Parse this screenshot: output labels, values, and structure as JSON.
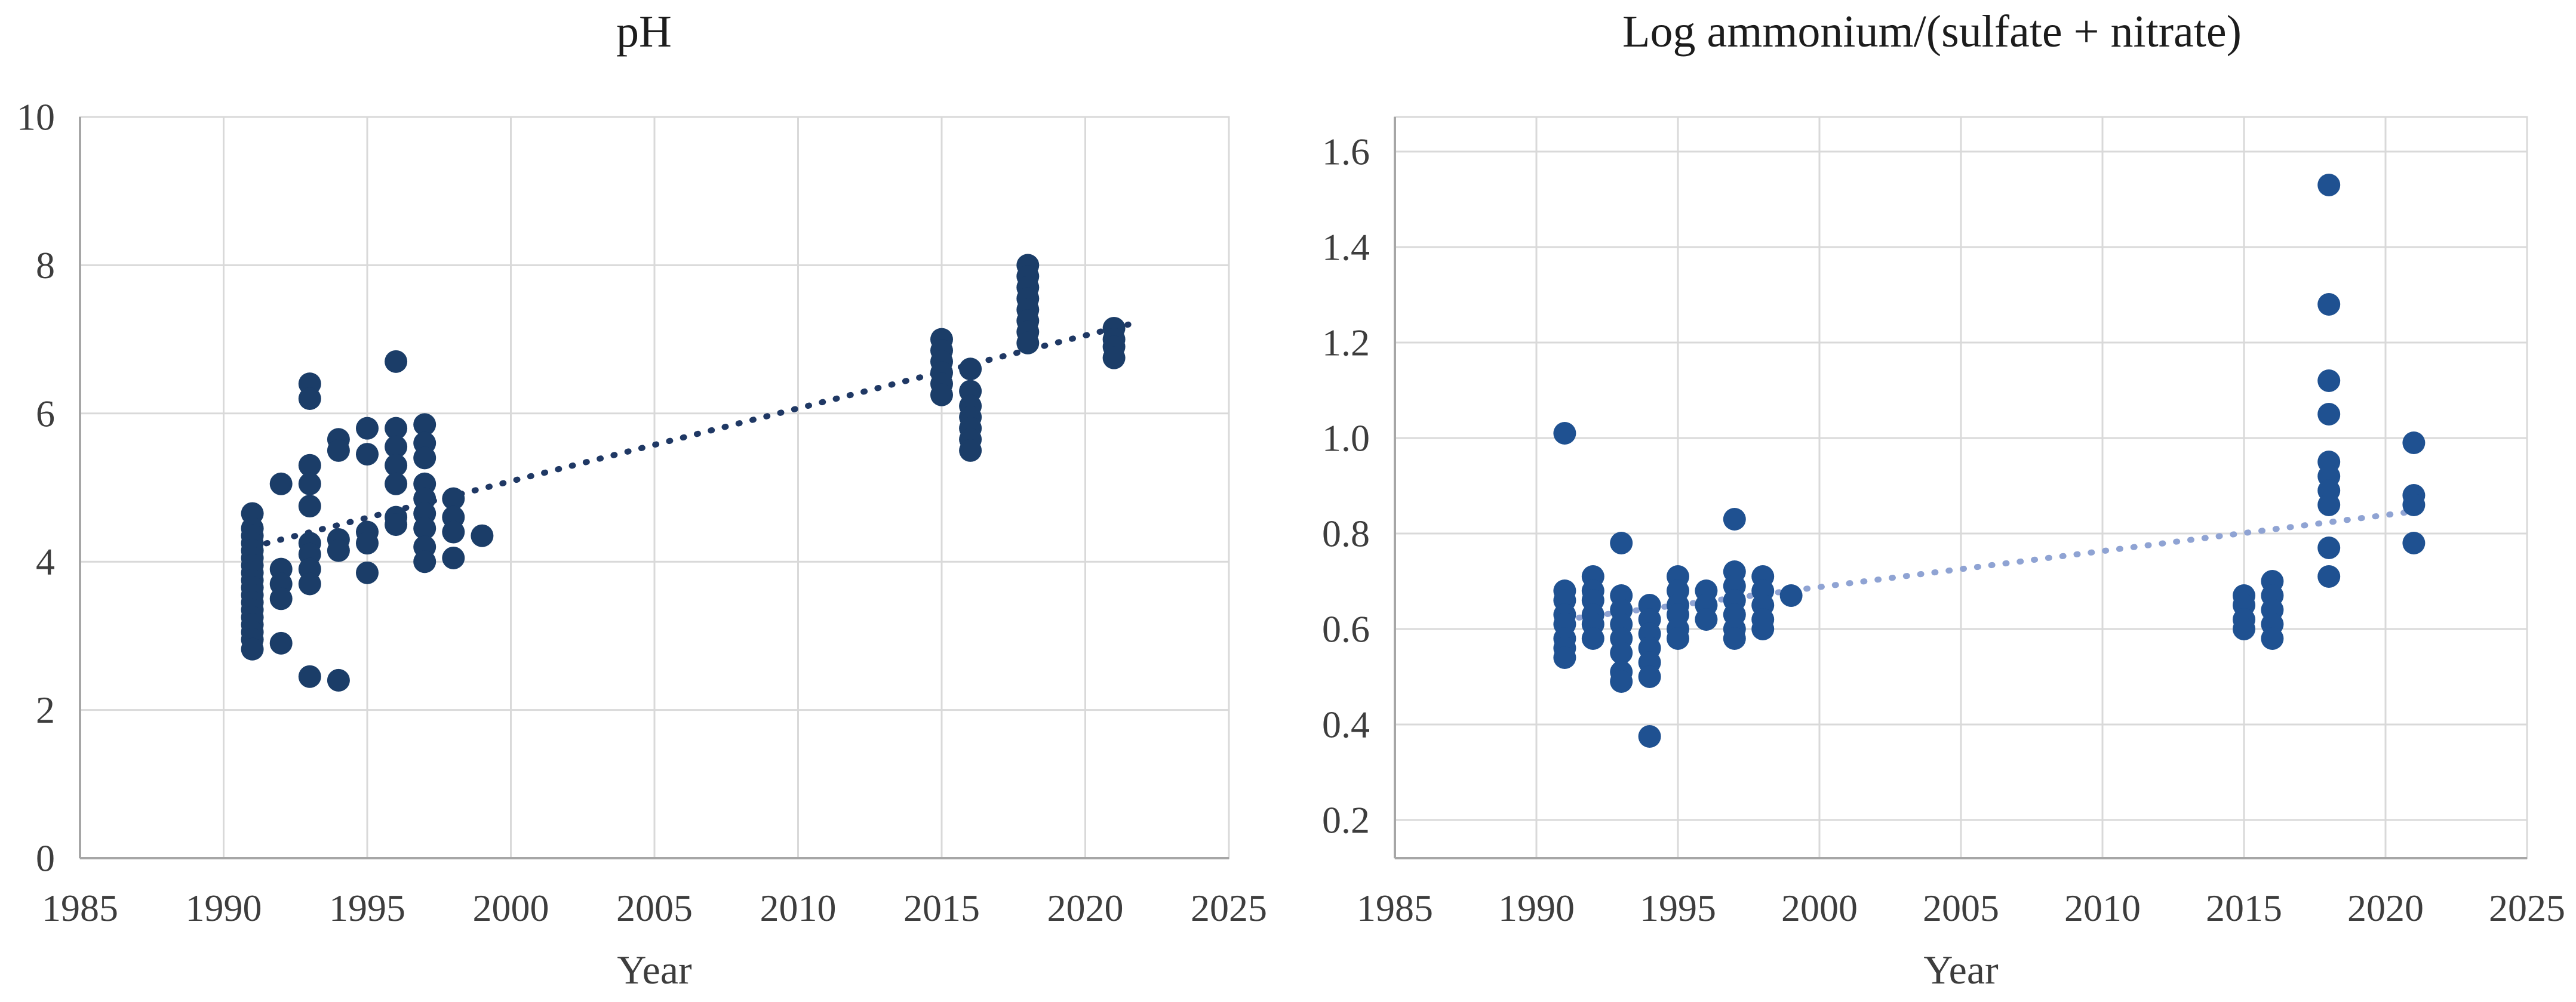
{
  "page": {
    "background": "#ffffff",
    "grid_color": "#d9d9d9",
    "axis_color": "#a6a6a6",
    "label_color": "#3d3d3d"
  },
  "chart_data": [
    {
      "type": "scatter",
      "title": "pH",
      "xlabel": "Year",
      "xlim": [
        1985,
        2025
      ],
      "ylim": [
        0,
        10
      ],
      "x_tick_values": [
        1985,
        1990,
        1995,
        2000,
        2005,
        2010,
        2015,
        2020,
        2025
      ],
      "x_tick_labels": [
        "1985",
        "1990",
        "1995",
        "2000",
        "2005",
        "2010",
        "2015",
        "2020",
        "2025"
      ],
      "y_tick_values": [
        0,
        2,
        4,
        6,
        8,
        10
      ],
      "y_tick_labels": [
        "0",
        "2",
        "4",
        "6",
        "8",
        "10"
      ],
      "grid": true,
      "legend": "none",
      "marker_color": "#1b3d68",
      "trendline": {
        "style": "dotted",
        "color": "#1f3864",
        "x": [
          1991,
          2021.5
        ],
        "y": [
          4.2,
          7.2
        ]
      },
      "points": [
        [
          1991,
          4.65
        ],
        [
          1991,
          4.45
        ],
        [
          1991,
          4.35
        ],
        [
          1991,
          4.25
        ],
        [
          1991,
          4.15
        ],
        [
          1991,
          4.05
        ],
        [
          1991,
          3.95
        ],
        [
          1991,
          3.85
        ],
        [
          1991,
          3.75
        ],
        [
          1991,
          3.65
        ],
        [
          1991,
          3.55
        ],
        [
          1991,
          3.45
        ],
        [
          1991,
          3.35
        ],
        [
          1991,
          3.25
        ],
        [
          1991,
          3.15
        ],
        [
          1991,
          3.05
        ],
        [
          1991,
          2.95
        ],
        [
          1991,
          2.82
        ],
        [
          1992,
          5.05
        ],
        [
          1992,
          3.9
        ],
        [
          1992,
          3.7
        ],
        [
          1992,
          3.5
        ],
        [
          1992,
          2.9
        ],
        [
          1993,
          6.4
        ],
        [
          1993,
          6.2
        ],
        [
          1993,
          5.3
        ],
        [
          1993,
          5.05
        ],
        [
          1993,
          4.75
        ],
        [
          1993,
          4.25
        ],
        [
          1993,
          4.1
        ],
        [
          1993,
          3.9
        ],
        [
          1993,
          3.7
        ],
        [
          1993,
          2.45
        ],
        [
          1994,
          5.65
        ],
        [
          1994,
          5.5
        ],
        [
          1994,
          4.3
        ],
        [
          1994,
          4.15
        ],
        [
          1994,
          2.4
        ],
        [
          1995,
          5.8
        ],
        [
          1995,
          5.45
        ],
        [
          1995,
          4.4
        ],
        [
          1995,
          4.25
        ],
        [
          1995,
          3.85
        ],
        [
          1996,
          6.7
        ],
        [
          1996,
          5.8
        ],
        [
          1996,
          5.55
        ],
        [
          1996,
          5.3
        ],
        [
          1996,
          5.05
        ],
        [
          1996,
          4.6
        ],
        [
          1996,
          4.5
        ],
        [
          1997,
          5.85
        ],
        [
          1997,
          5.6
        ],
        [
          1997,
          5.4
        ],
        [
          1997,
          5.05
        ],
        [
          1997,
          4.85
        ],
        [
          1997,
          4.65
        ],
        [
          1997,
          4.45
        ],
        [
          1997,
          4.2
        ],
        [
          1997,
          4.0
        ],
        [
          1998,
          4.85
        ],
        [
          1998,
          4.6
        ],
        [
          1998,
          4.4
        ],
        [
          1998,
          4.05
        ],
        [
          1999,
          4.35
        ],
        [
          2015,
          7.0
        ],
        [
          2015,
          6.85
        ],
        [
          2015,
          6.7
        ],
        [
          2015,
          6.55
        ],
        [
          2015,
          6.4
        ],
        [
          2015,
          6.25
        ],
        [
          2016,
          6.6
        ],
        [
          2016,
          6.3
        ],
        [
          2016,
          6.1
        ],
        [
          2016,
          5.95
        ],
        [
          2016,
          5.8
        ],
        [
          2016,
          5.65
        ],
        [
          2016,
          5.5
        ],
        [
          2018,
          8.0
        ],
        [
          2018,
          7.85
        ],
        [
          2018,
          7.7
        ],
        [
          2018,
          7.55
        ],
        [
          2018,
          7.4
        ],
        [
          2018,
          7.25
        ],
        [
          2018,
          7.1
        ],
        [
          2018,
          6.95
        ],
        [
          2021,
          7.15
        ],
        [
          2021,
          7.0
        ],
        [
          2021,
          6.9
        ],
        [
          2021,
          6.75
        ]
      ]
    },
    {
      "type": "scatter",
      "title": "Log ammonium/(sulfate + nitrate)",
      "xlabel": "Year",
      "xlim": [
        1985,
        2025
      ],
      "ylim": [
        0.12,
        1.6725
      ],
      "x_tick_values": [
        1985,
        1990,
        1995,
        2000,
        2005,
        2010,
        2015,
        2020,
        2025
      ],
      "x_tick_labels": [
        "1985",
        "1990",
        "1995",
        "2000",
        "2005",
        "2010",
        "2015",
        "2020",
        "2025"
      ],
      "y_tick_values": [
        0.2,
        0.4,
        0.6,
        0.8,
        1.0,
        1.2,
        1.4,
        1.6
      ],
      "y_tick_labels": [
        "0.2",
        "0.4",
        "0.6",
        "0.8",
        "1.0",
        "1.2",
        "1.4",
        "1.6"
      ],
      "grid": true,
      "legend": "none",
      "marker_color": "#1f5191",
      "trendline": {
        "style": "dotted",
        "color": "#8fa3d3",
        "x": [
          1991,
          2021.5
        ],
        "y": [
          0.62,
          0.85
        ]
      },
      "points": [
        [
          1991,
          1.01
        ],
        [
          1991,
          0.68
        ],
        [
          1991,
          0.66
        ],
        [
          1991,
          0.63
        ],
        [
          1991,
          0.61
        ],
        [
          1991,
          0.58
        ],
        [
          1991,
          0.56
        ],
        [
          1991,
          0.54
        ],
        [
          1992,
          0.71
        ],
        [
          1992,
          0.68
        ],
        [
          1992,
          0.66
        ],
        [
          1992,
          0.63
        ],
        [
          1992,
          0.61
        ],
        [
          1992,
          0.58
        ],
        [
          1993,
          0.78
        ],
        [
          1993,
          0.67
        ],
        [
          1993,
          0.64
        ],
        [
          1993,
          0.61
        ],
        [
          1993,
          0.58
        ],
        [
          1993,
          0.55
        ],
        [
          1993,
          0.51
        ],
        [
          1993,
          0.49
        ],
        [
          1994,
          0.65
        ],
        [
          1994,
          0.62
        ],
        [
          1994,
          0.59
        ],
        [
          1994,
          0.56
        ],
        [
          1994,
          0.53
        ],
        [
          1994,
          0.5
        ],
        [
          1994,
          0.375
        ],
        [
          1995,
          0.71
        ],
        [
          1995,
          0.68
        ],
        [
          1995,
          0.65
        ],
        [
          1995,
          0.63
        ],
        [
          1995,
          0.6
        ],
        [
          1995,
          0.58
        ],
        [
          1996,
          0.68
        ],
        [
          1996,
          0.65
        ],
        [
          1996,
          0.62
        ],
        [
          1997,
          0.83
        ],
        [
          1997,
          0.72
        ],
        [
          1997,
          0.69
        ],
        [
          1997,
          0.66
        ],
        [
          1997,
          0.63
        ],
        [
          1997,
          0.6
        ],
        [
          1997,
          0.58
        ],
        [
          1998,
          0.71
        ],
        [
          1998,
          0.68
        ],
        [
          1998,
          0.65
        ],
        [
          1998,
          0.62
        ],
        [
          1998,
          0.6
        ],
        [
          1999,
          0.67
        ],
        [
          2015,
          0.67
        ],
        [
          2015,
          0.65
        ],
        [
          2015,
          0.62
        ],
        [
          2015,
          0.6
        ],
        [
          2016,
          0.7
        ],
        [
          2016,
          0.67
        ],
        [
          2016,
          0.64
        ],
        [
          2016,
          0.61
        ],
        [
          2016,
          0.58
        ],
        [
          2018,
          1.53
        ],
        [
          2018,
          1.28
        ],
        [
          2018,
          1.12
        ],
        [
          2018,
          1.05
        ],
        [
          2018,
          0.95
        ],
        [
          2018,
          0.92
        ],
        [
          2018,
          0.89
        ],
        [
          2018,
          0.86
        ],
        [
          2018,
          0.77
        ],
        [
          2018,
          0.71
        ],
        [
          2021,
          0.99
        ],
        [
          2021,
          0.88
        ],
        [
          2021,
          0.86
        ],
        [
          2021,
          0.78
        ]
      ]
    }
  ]
}
